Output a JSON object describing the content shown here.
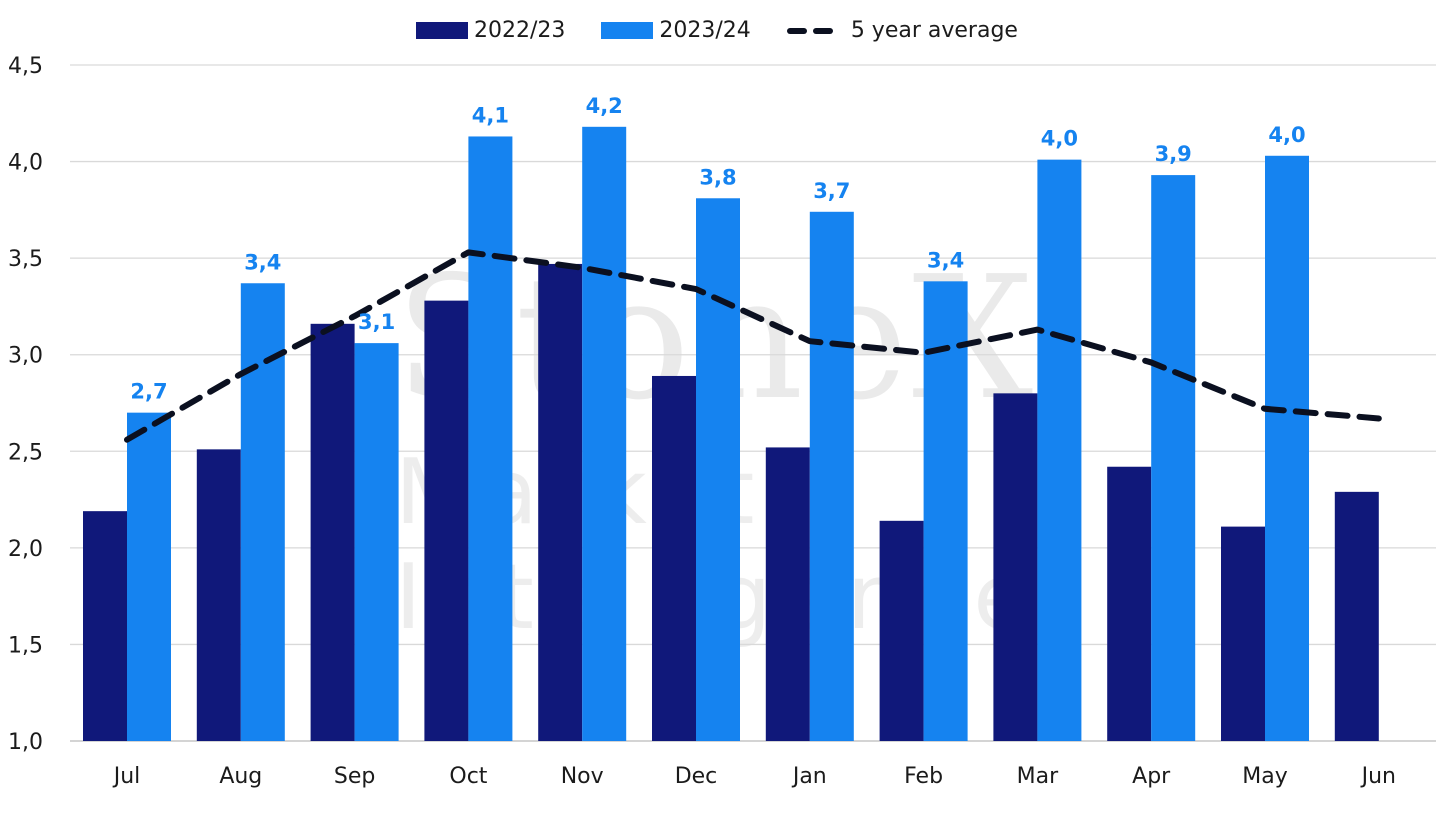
{
  "legend": {
    "series1": "2022/23",
    "series2": "2023/24",
    "series3": "5 year average"
  },
  "colors": {
    "series1": "#10187a",
    "series2": "#1583f0",
    "average": "#0b1020",
    "grid": "#d9d9d9",
    "label": "#1583f0"
  },
  "chart_data": {
    "type": "bar",
    "categories": [
      "Jul",
      "Aug",
      "Sep",
      "Oct",
      "Nov",
      "Dec",
      "Jan",
      "Feb",
      "Mar",
      "Apr",
      "May",
      "Jun"
    ],
    "series": [
      {
        "name": "2022/23",
        "values": [
          2.19,
          2.51,
          3.16,
          3.28,
          3.47,
          2.89,
          2.52,
          2.14,
          2.8,
          2.42,
          2.11,
          2.29
        ]
      },
      {
        "name": "2023/24",
        "values": [
          2.7,
          3.37,
          3.06,
          4.13,
          4.18,
          3.81,
          3.74,
          3.38,
          4.01,
          3.93,
          4.03,
          null
        ],
        "data_labels": [
          "2,7",
          "3,4",
          "3,1",
          "4,1",
          "4,2",
          "3,8",
          "3,7",
          "3,4",
          "4,0",
          "3,9",
          "4,0",
          ""
        ]
      },
      {
        "name": "5 year average",
        "type": "line",
        "style": "dashed",
        "values": [
          2.56,
          2.9,
          3.2,
          3.53,
          3.45,
          3.34,
          3.07,
          3.01,
          3.13,
          2.96,
          2.72,
          2.67
        ]
      }
    ],
    "ylim": [
      1.0,
      4.5
    ],
    "yticks": [
      "1,0",
      "1,5",
      "2,0",
      "2,5",
      "3,0",
      "3,5",
      "4,0",
      "4,5"
    ],
    "ytick_values": [
      1.0,
      1.5,
      2.0,
      2.5,
      3.0,
      3.5,
      4.0,
      4.5
    ],
    "grid": true,
    "legend_position": "top-center"
  },
  "watermark": {
    "line1": "StoneX",
    "line2": "Market Intelligence"
  }
}
